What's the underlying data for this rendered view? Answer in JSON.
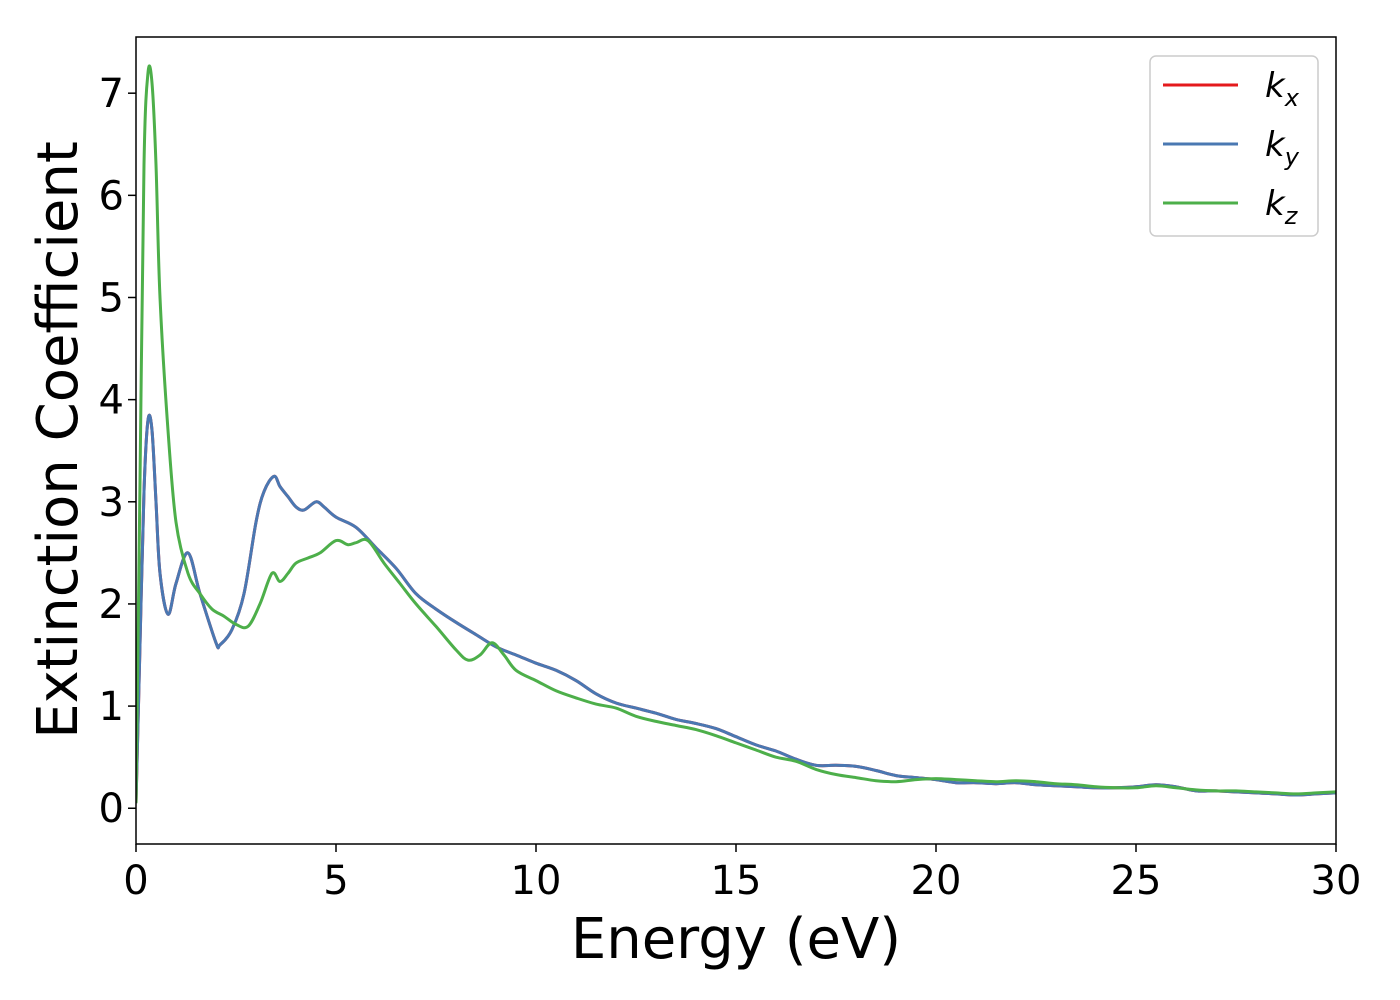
{
  "chart_data": {
    "type": "line",
    "title": "",
    "xlabel": "Energy (eV)",
    "ylabel": "Extinction Coefficient",
    "xlim": [
      0,
      30
    ],
    "ylim": [
      -0.35,
      7.55
    ],
    "xticks": [
      0,
      5,
      10,
      15,
      20,
      25,
      30
    ],
    "yticks": [
      0,
      1,
      2,
      3,
      4,
      5,
      6,
      7
    ],
    "grid": false,
    "legend_position": "top-right",
    "series": [
      {
        "name": "k",
        "sub": "x",
        "color": "#e41a1c",
        "x": [
          0,
          0.1,
          0.2,
          0.3,
          0.4,
          0.5,
          0.6,
          0.8,
          1.0,
          1.3,
          1.6,
          2.0,
          2.1,
          2.4,
          2.7,
          3.0,
          3.2,
          3.45,
          3.6,
          3.8,
          4.0,
          4.2,
          4.5,
          4.7,
          5.0,
          5.5,
          6.0,
          6.5,
          7.0,
          7.5,
          8.0,
          8.5,
          9.0,
          9.5,
          10.0,
          10.5,
          11.0,
          11.5,
          12.0,
          12.5,
          13.0,
          13.5,
          14.0,
          14.5,
          15.0,
          15.5,
          16.0,
          16.5,
          17.0,
          17.5,
          18.0,
          18.5,
          19.0,
          19.5,
          20.0,
          20.5,
          21.0,
          21.5,
          22.0,
          22.5,
          23.0,
          23.5,
          24.0,
          24.5,
          25.0,
          25.5,
          26.0,
          26.5,
          27.0,
          27.5,
          28.0,
          28.5,
          29.0,
          29.5,
          30.0
        ],
        "y": [
          0.05,
          1.6,
          3.1,
          3.8,
          3.7,
          3.0,
          2.3,
          1.9,
          2.2,
          2.5,
          2.1,
          1.62,
          1.6,
          1.75,
          2.1,
          2.8,
          3.1,
          3.25,
          3.15,
          3.05,
          2.95,
          2.92,
          3.0,
          2.95,
          2.85,
          2.75,
          2.55,
          2.35,
          2.1,
          1.95,
          1.82,
          1.7,
          1.58,
          1.5,
          1.42,
          1.35,
          1.25,
          1.12,
          1.03,
          0.98,
          0.93,
          0.87,
          0.83,
          0.78,
          0.7,
          0.62,
          0.56,
          0.48,
          0.42,
          0.42,
          0.41,
          0.37,
          0.32,
          0.3,
          0.28,
          0.25,
          0.25,
          0.24,
          0.25,
          0.23,
          0.22,
          0.21,
          0.2,
          0.2,
          0.21,
          0.23,
          0.21,
          0.17,
          0.17,
          0.16,
          0.15,
          0.14,
          0.13,
          0.14,
          0.15
        ]
      },
      {
        "name": "k",
        "sub": "y",
        "color": "#4a78b2",
        "x": [
          0,
          0.1,
          0.2,
          0.3,
          0.4,
          0.5,
          0.6,
          0.8,
          1.0,
          1.3,
          1.6,
          2.0,
          2.1,
          2.4,
          2.7,
          3.0,
          3.2,
          3.45,
          3.6,
          3.8,
          4.0,
          4.2,
          4.5,
          4.7,
          5.0,
          5.5,
          6.0,
          6.5,
          7.0,
          7.5,
          8.0,
          8.5,
          9.0,
          9.5,
          10.0,
          10.5,
          11.0,
          11.5,
          12.0,
          12.5,
          13.0,
          13.5,
          14.0,
          14.5,
          15.0,
          15.5,
          16.0,
          16.5,
          17.0,
          17.5,
          18.0,
          18.5,
          19.0,
          19.5,
          20.0,
          20.5,
          21.0,
          21.5,
          22.0,
          22.5,
          23.0,
          23.5,
          24.0,
          24.5,
          25.0,
          25.5,
          26.0,
          26.5,
          27.0,
          27.5,
          28.0,
          28.5,
          29.0,
          29.5,
          30.0
        ],
        "y": [
          0.05,
          1.6,
          3.1,
          3.8,
          3.7,
          3.0,
          2.3,
          1.9,
          2.2,
          2.5,
          2.1,
          1.62,
          1.6,
          1.75,
          2.1,
          2.8,
          3.1,
          3.25,
          3.15,
          3.05,
          2.95,
          2.92,
          3.0,
          2.95,
          2.85,
          2.75,
          2.55,
          2.35,
          2.1,
          1.95,
          1.82,
          1.7,
          1.58,
          1.5,
          1.42,
          1.35,
          1.25,
          1.12,
          1.03,
          0.98,
          0.93,
          0.87,
          0.83,
          0.78,
          0.7,
          0.62,
          0.56,
          0.48,
          0.42,
          0.42,
          0.41,
          0.37,
          0.32,
          0.3,
          0.28,
          0.25,
          0.25,
          0.24,
          0.25,
          0.23,
          0.22,
          0.21,
          0.2,
          0.2,
          0.21,
          0.23,
          0.21,
          0.17,
          0.17,
          0.16,
          0.15,
          0.14,
          0.13,
          0.14,
          0.15
        ]
      },
      {
        "name": "k",
        "sub": "z",
        "color": "#4daf4a",
        "x": [
          0,
          0.1,
          0.2,
          0.3,
          0.4,
          0.5,
          0.6,
          0.8,
          1.0,
          1.3,
          1.6,
          1.9,
          2.2,
          2.5,
          2.8,
          3.1,
          3.4,
          3.6,
          3.8,
          4.0,
          4.3,
          4.6,
          5.0,
          5.3,
          5.5,
          5.8,
          6.2,
          6.6,
          7.0,
          7.5,
          8.0,
          8.3,
          8.6,
          8.9,
          9.2,
          9.5,
          10.0,
          10.5,
          11.0,
          11.5,
          12.0,
          12.5,
          13.0,
          13.5,
          14.0,
          14.5,
          15.0,
          15.5,
          16.0,
          16.5,
          17.0,
          17.5,
          18.0,
          18.5,
          19.0,
          19.5,
          20.0,
          20.5,
          21.0,
          21.5,
          22.0,
          22.5,
          23.0,
          23.5,
          24.0,
          24.5,
          25.0,
          25.5,
          26.0,
          26.5,
          27.0,
          27.5,
          28.0,
          28.5,
          29.0,
          29.5,
          30.0
        ],
        "y": [
          0.05,
          3.2,
          6.3,
          7.2,
          7.1,
          6.3,
          5.0,
          3.7,
          2.8,
          2.3,
          2.1,
          1.95,
          1.88,
          1.8,
          1.78,
          2.0,
          2.3,
          2.22,
          2.3,
          2.4,
          2.45,
          2.5,
          2.62,
          2.58,
          2.6,
          2.62,
          2.4,
          2.2,
          2.0,
          1.78,
          1.55,
          1.45,
          1.5,
          1.62,
          1.5,
          1.35,
          1.25,
          1.15,
          1.08,
          1.02,
          0.98,
          0.9,
          0.85,
          0.81,
          0.77,
          0.71,
          0.64,
          0.57,
          0.5,
          0.46,
          0.38,
          0.33,
          0.3,
          0.27,
          0.26,
          0.28,
          0.29,
          0.28,
          0.27,
          0.26,
          0.27,
          0.26,
          0.24,
          0.23,
          0.21,
          0.2,
          0.2,
          0.22,
          0.2,
          0.18,
          0.17,
          0.17,
          0.16,
          0.15,
          0.14,
          0.15,
          0.16
        ]
      }
    ]
  }
}
